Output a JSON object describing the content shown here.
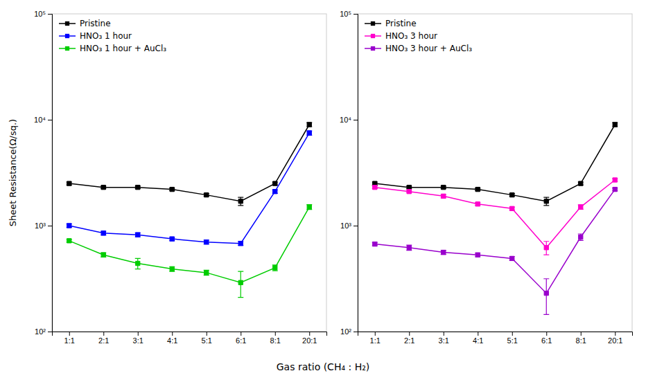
{
  "chart_data": [
    {
      "type": "line",
      "categories": [
        "1:1",
        "2:1",
        "3:1",
        "4:1",
        "5:1",
        "6:1",
        "8:1",
        "20:1"
      ],
      "series": [
        {
          "name": "Pristine",
          "color": "#000000",
          "values": [
            2500,
            2300,
            2300,
            2200,
            1950,
            1700,
            2500,
            9000
          ],
          "errors": [
            80,
            60,
            60,
            60,
            60,
            150,
            80,
            400
          ]
        },
        {
          "name": "HNO₃ 1 hour",
          "color": "#0000FF",
          "values": [
            1000,
            850,
            820,
            750,
            700,
            680,
            2100,
            7500
          ],
          "errors": [
            40,
            35,
            35,
            30,
            30,
            30,
            80,
            350
          ]
        },
        {
          "name": "HNO₃ 1 hour + AuCl₃",
          "color": "#00CC00",
          "values": [
            720,
            530,
            440,
            390,
            360,
            290,
            400,
            1500
          ],
          "errors": [
            25,
            25,
            50,
            20,
            20,
            80,
            25,
            80
          ]
        }
      ],
      "y_label": "Sheet Resistance(Ω/sq.)",
      "x_label": "Gas ratio (CH₄ : H₂)",
      "ylim": [
        100,
        100000
      ],
      "yticks": [
        {
          "value": 100,
          "label": "10²"
        },
        {
          "value": 1000,
          "label": "10³"
        },
        {
          "value": 10000,
          "label": "10⁴"
        },
        {
          "value": 100000,
          "label": "10⁵"
        }
      ],
      "log": "y",
      "grid": false,
      "legend": "upper left",
      "marker": "square"
    },
    {
      "type": "line",
      "categories": [
        "1:1",
        "2:1",
        "3:1",
        "4:1",
        "5:1",
        "6:1",
        "8:1",
        "20:1"
      ],
      "series": [
        {
          "name": "Pristine",
          "color": "#000000",
          "values": [
            2500,
            2300,
            2300,
            2200,
            1950,
            1700,
            2500,
            9000
          ],
          "errors": [
            80,
            60,
            60,
            60,
            60,
            150,
            80,
            400
          ]
        },
        {
          "name": "HNO₃ 3 hour",
          "color": "#FF00CC",
          "values": [
            2300,
            2100,
            1900,
            1600,
            1450,
            620,
            1500,
            2700
          ],
          "errors": [
            60,
            55,
            70,
            55,
            50,
            90,
            75,
            90
          ]
        },
        {
          "name": "HNO₃ 3 hour + AuCl₃",
          "color": "#9900CC",
          "values": [
            670,
            620,
            560,
            530,
            490,
            230,
            780,
            2200
          ],
          "errors": [
            25,
            35,
            25,
            22,
            22,
            85,
            55,
            70
          ]
        }
      ],
      "ylim": [
        100,
        100000
      ],
      "yticks": [
        {
          "value": 100,
          "label": "10²"
        },
        {
          "value": 1000,
          "label": "10³"
        },
        {
          "value": 10000,
          "label": "10⁴"
        },
        {
          "value": 100000,
          "label": "10⁵"
        }
      ],
      "log": "y",
      "grid": false,
      "legend": "upper left",
      "marker": "square"
    }
  ]
}
